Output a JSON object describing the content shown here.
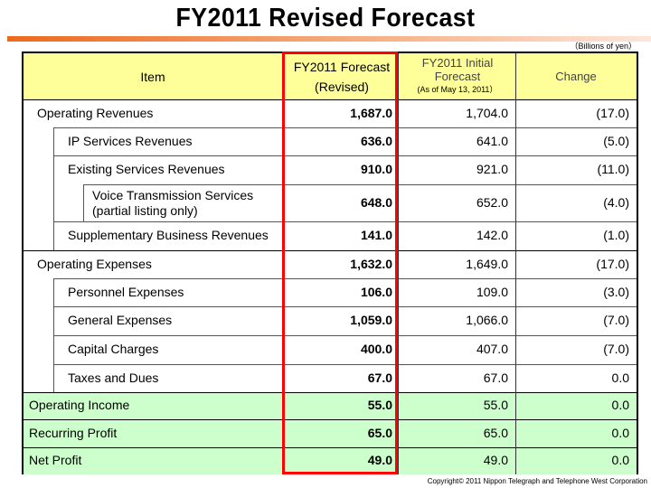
{
  "title": "FY2011 Revised Forecast",
  "unit": "（Billions of yen）",
  "header": {
    "item": "Item",
    "revised_1": "FY2011 Forecast",
    "revised_2": "(Revised)",
    "initial_1": "FY2011 Initial",
    "initial_2": "Forecast",
    "initial_3": "(As of May 13, 2011）",
    "change": "Change"
  },
  "colors": {
    "header_bg": "#ffff99",
    "total_bg": "#ccffcc",
    "highlight": "#ff0000",
    "bar": "#ec6a1e"
  },
  "rows": [
    {
      "label": "Operating Revenues",
      "level": 1,
      "revised": "1,687.0",
      "initial": "1,704.0",
      "change": "(17.0)"
    },
    {
      "label": "IP Services Revenues",
      "level": 2,
      "revised": "636.0",
      "initial": "641.0",
      "change": "(5.0)"
    },
    {
      "label": "Existing Services Revenues",
      "level": 2,
      "revised": "910.0",
      "initial": "921.0",
      "change": "(11.0)"
    },
    {
      "label": "Voice Transmission Services",
      "label2": "(partial listing only)",
      "level": 3,
      "revised": "648.0",
      "initial": "652.0",
      "change": "(4.0)"
    },
    {
      "label": "Supplementary Business Revenues",
      "level": 2,
      "revised": "141.0",
      "initial": "142.0",
      "change": "(1.0)"
    },
    {
      "label": "Operating Expenses",
      "level": 1,
      "revised": "1,632.0",
      "initial": "1,649.0",
      "change": "(17.0)"
    },
    {
      "label": "Personnel Expenses",
      "level": 2,
      "revised": "106.0",
      "initial": "109.0",
      "change": "(3.0)"
    },
    {
      "label": "General Expenses",
      "level": 2,
      "revised": "1,059.0",
      "initial": "1,066.0",
      "change": "(7.0)"
    },
    {
      "label": "Capital Charges",
      "level": 2,
      "revised": "400.0",
      "initial": "407.0",
      "change": "(7.0)"
    },
    {
      "label": "Taxes and Dues",
      "level": 2,
      "revised": "67.0",
      "initial": "67.0",
      "change": "0.0"
    },
    {
      "label": "Operating Income",
      "level": 0,
      "revised": "55.0",
      "initial": "55.0",
      "change": "0.0"
    },
    {
      "label": "Recurring Profit",
      "level": 0,
      "revised": "65.0",
      "initial": "65.0",
      "change": "0.0"
    },
    {
      "label": "Net Profit",
      "level": 0,
      "revised": "49.0",
      "initial": "49.0",
      "change": "0.0"
    }
  ],
  "copyright": "Copyright© 2011 Nippon Telegraph and Telephone West Corporation"
}
